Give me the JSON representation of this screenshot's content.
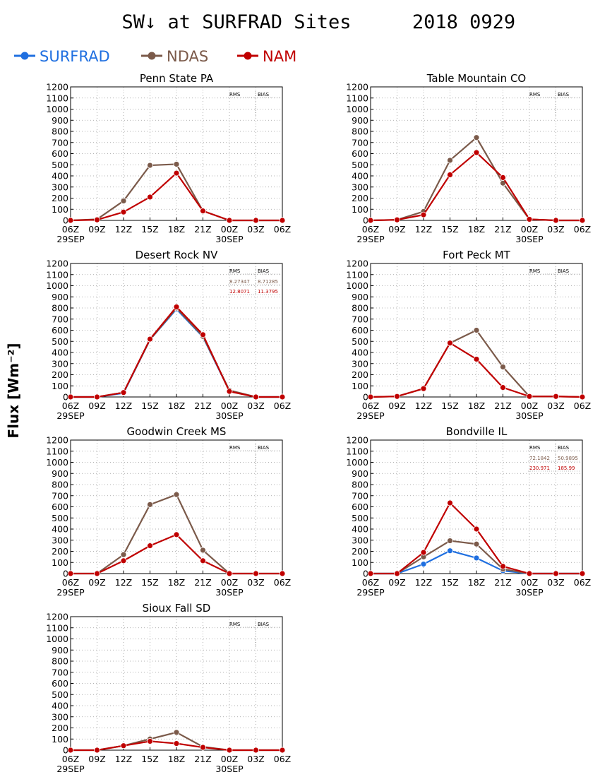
{
  "page": {
    "title": "SW↓ at SURFRAD Sites",
    "date": "2018 0929",
    "ylabel": "Flux [Wm⁻²]"
  },
  "legend": [
    {
      "name": "SURFRAD",
      "color": "#1f6fe0"
    },
    {
      "name": "NDAS",
      "color": "#7b5a4a"
    },
    {
      "name": "NAM",
      "color": "#c00000"
    }
  ],
  "axes": {
    "x_ticks": [
      "06Z",
      "09Z",
      "12Z",
      "15Z",
      "18Z",
      "21Z",
      "00Z",
      "03Z",
      "06Z"
    ],
    "date_labels": [
      {
        "at_tick": 0,
        "text": "29SEP"
      },
      {
        "at_tick": 6,
        "text": "30SEP"
      }
    ],
    "y_ticks": [
      0,
      100,
      200,
      300,
      400,
      500,
      600,
      700,
      800,
      900,
      1000,
      1100,
      1200
    ],
    "ylim": [
      0,
      1200
    ],
    "grid": true
  },
  "stats_headers": {
    "rms": "RMS",
    "bias": "BIAS"
  },
  "chart_data": [
    {
      "type": "line",
      "title": "Penn State PA",
      "x": [
        "06Z",
        "09Z",
        "12Z",
        "15Z",
        "18Z",
        "21Z",
        "00Z",
        "03Z",
        "06Z"
      ],
      "series": [
        {
          "name": "SURFRAD",
          "values": [
            null,
            null,
            null,
            null,
            null,
            null,
            null,
            null,
            null
          ]
        },
        {
          "name": "NDAS",
          "values": [
            0,
            10,
            175,
            495,
            505,
            85,
            0,
            0,
            0
          ]
        },
        {
          "name": "NAM",
          "values": [
            0,
            5,
            75,
            210,
            425,
            85,
            0,
            0,
            0
          ]
        }
      ],
      "stats": {
        "ndas": null,
        "nam": null
      }
    },
    {
      "type": "line",
      "title": "Table Mountain CO",
      "x": [
        "06Z",
        "09Z",
        "12Z",
        "15Z",
        "18Z",
        "21Z",
        "00Z",
        "03Z",
        "06Z"
      ],
      "series": [
        {
          "name": "SURFRAD",
          "values": [
            null,
            null,
            null,
            null,
            null,
            null,
            null,
            null,
            null
          ]
        },
        {
          "name": "NDAS",
          "values": [
            0,
            5,
            80,
            540,
            745,
            335,
            10,
            0,
            0
          ]
        },
        {
          "name": "NAM",
          "values": [
            0,
            5,
            50,
            410,
            610,
            385,
            10,
            0,
            0
          ]
        }
      ],
      "stats": {
        "ndas": null,
        "nam": null
      }
    },
    {
      "type": "line",
      "title": "Desert Rock NV",
      "x": [
        "06Z",
        "09Z",
        "12Z",
        "15Z",
        "18Z",
        "21Z",
        "00Z",
        "03Z",
        "06Z"
      ],
      "series": [
        {
          "name": "SURFRAD",
          "values": [
            0,
            0,
            35,
            515,
            790,
            540,
            55,
            0,
            0
          ]
        },
        {
          "name": "NDAS",
          "values": [
            0,
            0,
            40,
            515,
            800,
            545,
            60,
            0,
            0
          ]
        },
        {
          "name": "NAM",
          "values": [
            0,
            0,
            40,
            520,
            810,
            560,
            50,
            0,
            0
          ]
        }
      ],
      "stats": {
        "ndas": {
          "rms": "8.27347",
          "bias": "8.71285"
        },
        "nam": {
          "rms": "12.8071",
          "bias": "11.3795"
        }
      }
    },
    {
      "type": "line",
      "title": "Fort Peck MT",
      "x": [
        "06Z",
        "09Z",
        "12Z",
        "15Z",
        "18Z",
        "21Z",
        "00Z",
        "03Z",
        "06Z"
      ],
      "series": [
        {
          "name": "SURFRAD",
          "values": [
            null,
            null,
            null,
            null,
            null,
            null,
            null,
            null,
            null
          ]
        },
        {
          "name": "NDAS",
          "values": [
            0,
            5,
            75,
            485,
            600,
            270,
            5,
            5,
            0
          ]
        },
        {
          "name": "NAM",
          "values": [
            0,
            5,
            75,
            485,
            340,
            85,
            5,
            5,
            0
          ]
        }
      ],
      "stats": {
        "ndas": null,
        "nam": null
      }
    },
    {
      "type": "line",
      "title": "Goodwin Creek MS",
      "x": [
        "06Z",
        "09Z",
        "12Z",
        "15Z",
        "18Z",
        "21Z",
        "00Z",
        "03Z",
        "06Z"
      ],
      "series": [
        {
          "name": "SURFRAD",
          "values": [
            null,
            null,
            null,
            null,
            null,
            null,
            null,
            null,
            null
          ]
        },
        {
          "name": "NDAS",
          "values": [
            0,
            0,
            170,
            620,
            710,
            210,
            0,
            0,
            0
          ]
        },
        {
          "name": "NAM",
          "values": [
            0,
            0,
            115,
            250,
            350,
            115,
            0,
            0,
            0
          ]
        }
      ],
      "stats": {
        "ndas": null,
        "nam": null
      }
    },
    {
      "type": "line",
      "title": "Bondville IL",
      "x": [
        "06Z",
        "09Z",
        "12Z",
        "15Z",
        "18Z",
        "21Z",
        "00Z",
        "03Z",
        "06Z"
      ],
      "series": [
        {
          "name": "SURFRAD",
          "values": [
            0,
            0,
            85,
            205,
            140,
            25,
            0,
            0,
            0
          ]
        },
        {
          "name": "NDAS",
          "values": [
            0,
            0,
            150,
            295,
            265,
            40,
            0,
            0,
            0
          ]
        },
        {
          "name": "NAM",
          "values": [
            0,
            0,
            190,
            635,
            400,
            65,
            0,
            0,
            0
          ]
        }
      ],
      "stats": {
        "ndas": {
          "rms": "72.1842",
          "bias": "50.9895"
        },
        "nam": {
          "rms": "230.971",
          "bias": "185.99"
        }
      }
    },
    {
      "type": "line",
      "title": "Sioux Fall SD",
      "x": [
        "06Z",
        "09Z",
        "12Z",
        "15Z",
        "18Z",
        "21Z",
        "00Z",
        "03Z",
        "06Z"
      ],
      "series": [
        {
          "name": "SURFRAD",
          "values": [
            null,
            null,
            null,
            null,
            null,
            null,
            null,
            null,
            null
          ]
        },
        {
          "name": "NDAS",
          "values": [
            0,
            0,
            40,
            100,
            160,
            30,
            0,
            0,
            0
          ]
        },
        {
          "name": "NAM",
          "values": [
            0,
            0,
            40,
            80,
            60,
            25,
            0,
            0,
            0
          ]
        }
      ],
      "stats": {
        "ndas": null,
        "nam": null
      }
    }
  ]
}
